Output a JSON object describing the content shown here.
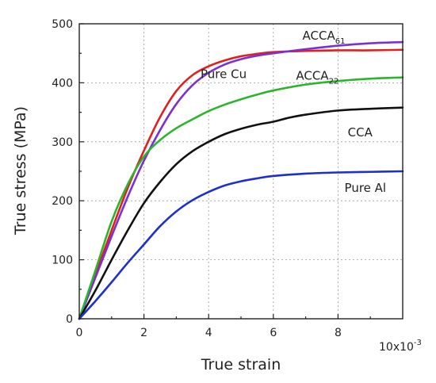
{
  "chart_data": {
    "type": "line",
    "xlabel": "True strain",
    "ylabel": "True stress (MPa)",
    "x_multiplier_label": "10x10",
    "x_multiplier_exponent": "-3",
    "xlim": [
      0,
      10
    ],
    "ylim": [
      0,
      500
    ],
    "xticks": [
      0,
      2,
      4,
      6,
      8
    ],
    "yticks": [
      0,
      100,
      200,
      300,
      400,
      500
    ],
    "grid": true,
    "series": [
      {
        "name": "Pure Cu",
        "color": "#e0201c",
        "x": [
          0,
          0.5,
          1.0,
          1.5,
          2.0,
          2.5,
          3.0,
          3.5,
          4.0,
          4.5,
          5.0,
          5.5,
          6.0,
          7.0,
          8.0,
          9.0,
          10.0
        ],
        "y": [
          0,
          75,
          150,
          222,
          285,
          342,
          386,
          413,
          428,
          438,
          445,
          449,
          452,
          454,
          455,
          455,
          456
        ]
      },
      {
        "name": "ACCA",
        "name_sub": "61",
        "color": "#7b30d4",
        "x": [
          0,
          0.5,
          1.0,
          1.5,
          2.0,
          2.5,
          3.0,
          3.5,
          4.0,
          4.5,
          5.0,
          5.5,
          6.0,
          7.0,
          8.0,
          9.0,
          10.0
        ],
        "y": [
          0,
          70,
          140,
          207,
          268,
          320,
          364,
          396,
          417,
          431,
          440,
          446,
          450,
          457,
          463,
          467,
          469
        ]
      },
      {
        "name": "ACCA",
        "name_sub": "22",
        "color": "#2ab52a",
        "x": [
          0,
          0.5,
          1.0,
          1.5,
          2.0,
          2.5,
          3.0,
          3.5,
          4.0,
          4.5,
          5.0,
          5.5,
          6.0,
          7.0,
          8.0,
          9.0,
          10.0
        ],
        "y": [
          0,
          82,
          165,
          228,
          275,
          303,
          323,
          338,
          352,
          363,
          372,
          380,
          387,
          397,
          403,
          407,
          409
        ]
      },
      {
        "name": "CCA",
        "color": "#111111",
        "x": [
          0,
          0.5,
          1.0,
          1.5,
          2.0,
          2.5,
          3.0,
          3.5,
          4.0,
          4.5,
          5.0,
          5.5,
          6.0,
          6.5,
          7.0,
          8.0,
          9.0,
          10.0
        ],
        "y": [
          0,
          48,
          100,
          150,
          196,
          232,
          262,
          284,
          300,
          313,
          322,
          329,
          334,
          341,
          346,
          353,
          356,
          358
        ]
      },
      {
        "name": "Pure Al",
        "color": "#1c2fd0",
        "x": [
          0,
          0.5,
          1.0,
          1.5,
          2.0,
          2.5,
          3.0,
          3.5,
          4.0,
          4.5,
          5.0,
          5.5,
          6.0,
          7.0,
          8.0,
          9.0,
          10.0
        ],
        "y": [
          0,
          30,
          62,
          95,
          126,
          157,
          182,
          201,
          215,
          226,
          233,
          238,
          242,
          246,
          248,
          249,
          250
        ]
      }
    ],
    "annotations": [
      {
        "text": "Pure Cu",
        "series": 0,
        "at_x": 3.75,
        "at_y": 408
      },
      {
        "text": "ACCA",
        "sub": "61",
        "series": 1,
        "at_x": 6.9,
        "at_y": 473
      },
      {
        "text": "ACCA",
        "sub": "22",
        "series": 2,
        "at_x": 6.7,
        "at_y": 405
      },
      {
        "text": "CCA",
        "series": 3,
        "at_x": 8.3,
        "at_y": 309
      },
      {
        "text": "Pure Al",
        "series": 4,
        "at_x": 8.2,
        "at_y": 215
      }
    ]
  }
}
